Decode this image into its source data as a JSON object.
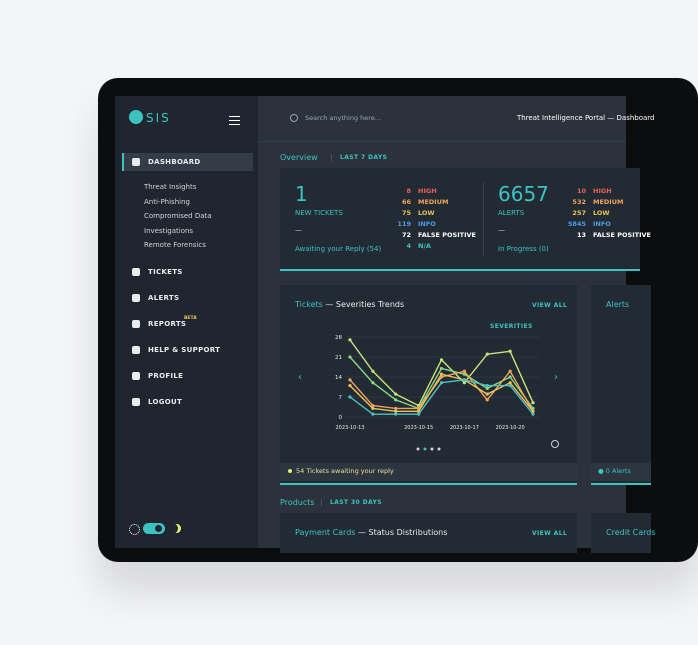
{
  "header": {
    "search_placeholder": "Search anything here...",
    "portal_title": "Threat Intelligence Portal — Dashboard"
  },
  "sidebar": {
    "logo": "SIS",
    "nav": [
      {
        "label": "DASHBOARD",
        "children": [
          "Threat Insights",
          "Anti-Phishing",
          "Compromised Data",
          "Investigations",
          "Remote Forensics"
        ]
      },
      {
        "label": "TICKETS"
      },
      {
        "label": "ALERTS"
      },
      {
        "label": "REPORTS",
        "badge": "BETA"
      },
      {
        "label": "HELP & SUPPORT"
      },
      {
        "label": "PROFILE"
      },
      {
        "label": "LOGOUT"
      }
    ]
  },
  "overview": {
    "title": "Overview",
    "period": "LAST 7 DAYS",
    "tickets": {
      "count": 1,
      "label": "NEW TICKETS",
      "dash": "—",
      "status": "Awaiting your Reply (54)",
      "severities": [
        {
          "count": 8,
          "label": "HIGH"
        },
        {
          "count": 66,
          "label": "MEDIUM"
        },
        {
          "count": 75,
          "label": "LOW"
        },
        {
          "count": 119,
          "label": "INFO"
        },
        {
          "count": 72,
          "label": "FALSE POSITIVE"
        },
        {
          "count": 4,
          "label": "N/A"
        }
      ]
    },
    "alerts": {
      "count": 6657,
      "label": "ALERTS",
      "dash": "—",
      "status": "In Progress (0)",
      "severities": [
        {
          "count": 10,
          "label": "HIGH"
        },
        {
          "count": 532,
          "label": "MEDIUM"
        },
        {
          "count": 257,
          "label": "LOW"
        },
        {
          "count": 5845,
          "label": "INFO"
        },
        {
          "count": 13,
          "label": "FALSE POSITIVE"
        }
      ]
    }
  },
  "trends_panel": {
    "title": "Tickets",
    "subtitle": "— Severities Trends",
    "action": "VIEW ALL",
    "filter": "SEVERITIES",
    "footer": "54 Tickets awaiting your reply",
    "chart_data": {
      "type": "line",
      "categories": [
        "2023-10-13",
        null,
        null,
        "2023-10-15",
        null,
        "2023-10-17",
        null,
        "2023-10-20",
        null
      ],
      "ylim": [
        0,
        28
      ],
      "yticks": [
        0,
        7,
        14,
        21,
        28
      ],
      "grid": true,
      "series": [
        {
          "color": "#c8e27c",
          "values": [
            27,
            16,
            8,
            4,
            20,
            12,
            22,
            23,
            5
          ]
        },
        {
          "color": "#86d886",
          "values": [
            21,
            12,
            6,
            3,
            17,
            15,
            10,
            14,
            3
          ]
        },
        {
          "color": "#f0a35a",
          "values": [
            13,
            4,
            3,
            3,
            14,
            16,
            6,
            16,
            2
          ]
        },
        {
          "color": "#e8c25a",
          "values": [
            11,
            3,
            2,
            2,
            15,
            13,
            8,
            12,
            2
          ]
        },
        {
          "color": "#4fc1c1",
          "values": [
            7,
            1,
            1,
            1,
            12,
            13,
            11,
            11,
            1
          ]
        }
      ]
    }
  },
  "alerts_panel": {
    "title": "Alerts",
    "footer": "0 Alerts"
  },
  "products": {
    "title": "Products",
    "period": "LAST 30 DAYS",
    "card": {
      "title": "Payment Cards",
      "subtitle": "— Status Distributions",
      "action": "VIEW ALL"
    },
    "next_card": {
      "title": "Credit Cards"
    }
  }
}
